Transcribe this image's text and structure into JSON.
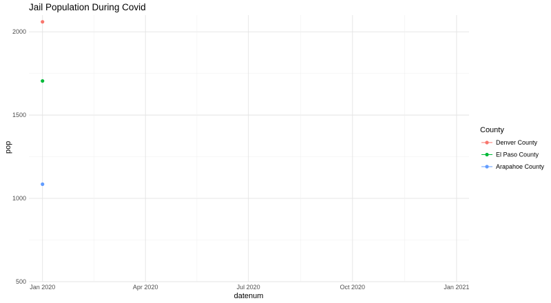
{
  "chart_data": {
    "type": "scatter",
    "title": "Jail Population During Covid",
    "xlabel": "datenum",
    "ylabel": "pop",
    "ylim": [
      500,
      2100
    ],
    "yticks": [
      500,
      1000,
      1500,
      2000
    ],
    "xlim": [
      "2019-12-20",
      "2021-01-12"
    ],
    "xticks": [
      {
        "date": "2020-01-01",
        "label": "Jan 2020"
      },
      {
        "date": "2020-04-01",
        "label": "Apr 2020"
      },
      {
        "date": "2020-07-01",
        "label": "Jul 2020"
      },
      {
        "date": "2020-10-01",
        "label": "Oct 2020"
      },
      {
        "date": "2021-01-01",
        "label": "Jan 2021"
      }
    ],
    "grid": true,
    "legend": {
      "title": "County",
      "position": "right"
    },
    "series": [
      {
        "name": "Denver County",
        "color": "#F8766D",
        "points": [
          {
            "x": "2020-01-01",
            "y": 2060
          }
        ]
      },
      {
        "name": "El Paso County",
        "color": "#00BA38",
        "points": [
          {
            "x": "2020-01-01",
            "y": 1705
          }
        ]
      },
      {
        "name": "Arapahoe County",
        "color": "#619CFF",
        "points": [
          {
            "x": "2020-01-01",
            "y": 1085
          }
        ]
      }
    ]
  }
}
